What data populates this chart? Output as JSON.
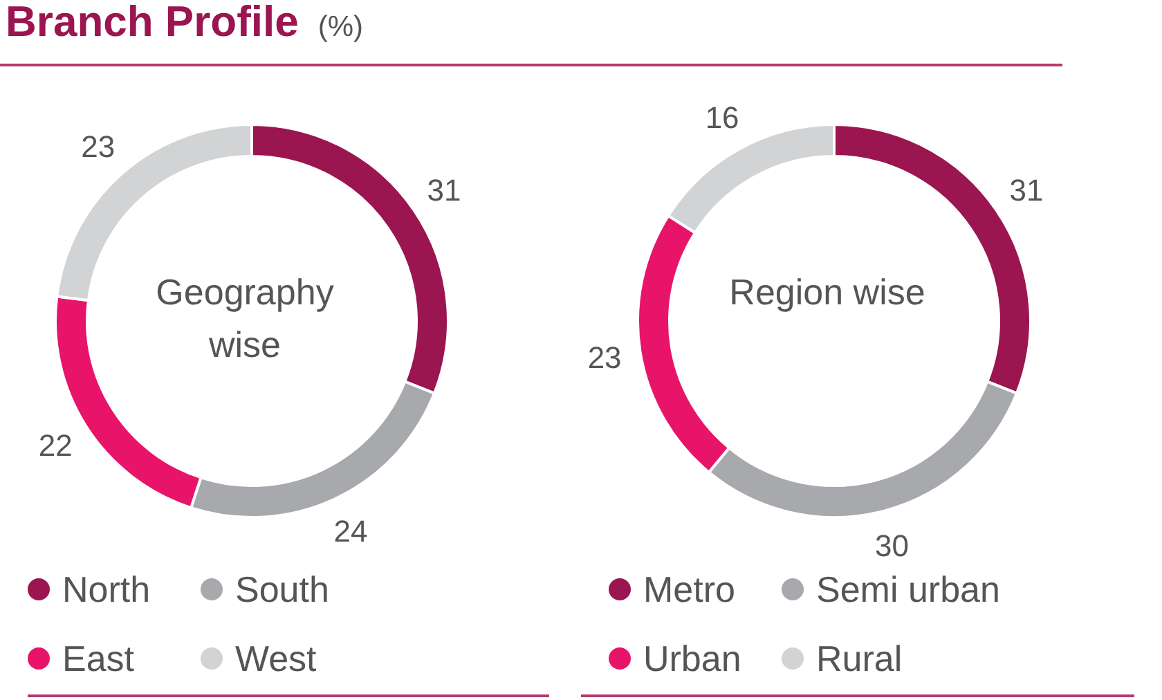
{
  "chart_data": [
    {
      "type": "donut",
      "title": "Branch Profile",
      "subtitle": "(%)",
      "annotations": [
        "Geography wise"
      ],
      "categories": [
        "North",
        "South",
        "East",
        "West"
      ],
      "values": [
        31,
        24,
        22,
        23
      ],
      "colors": [
        "#9b1550",
        "#a7a9ac",
        "#e8146a",
        "#d1d3d4"
      ],
      "data_labels": true,
      "legend": "bottom"
    },
    {
      "type": "donut",
      "annotations": [
        "Region wise"
      ],
      "categories": [
        "Metro",
        "Semi urban",
        "Urban",
        "Rural"
      ],
      "values": [
        31,
        30,
        23,
        16
      ],
      "colors": [
        "#9b1550",
        "#a7a9ac",
        "#e8146a",
        "#d1d3d4"
      ],
      "data_labels": true,
      "legend": "bottom"
    }
  ]
}
